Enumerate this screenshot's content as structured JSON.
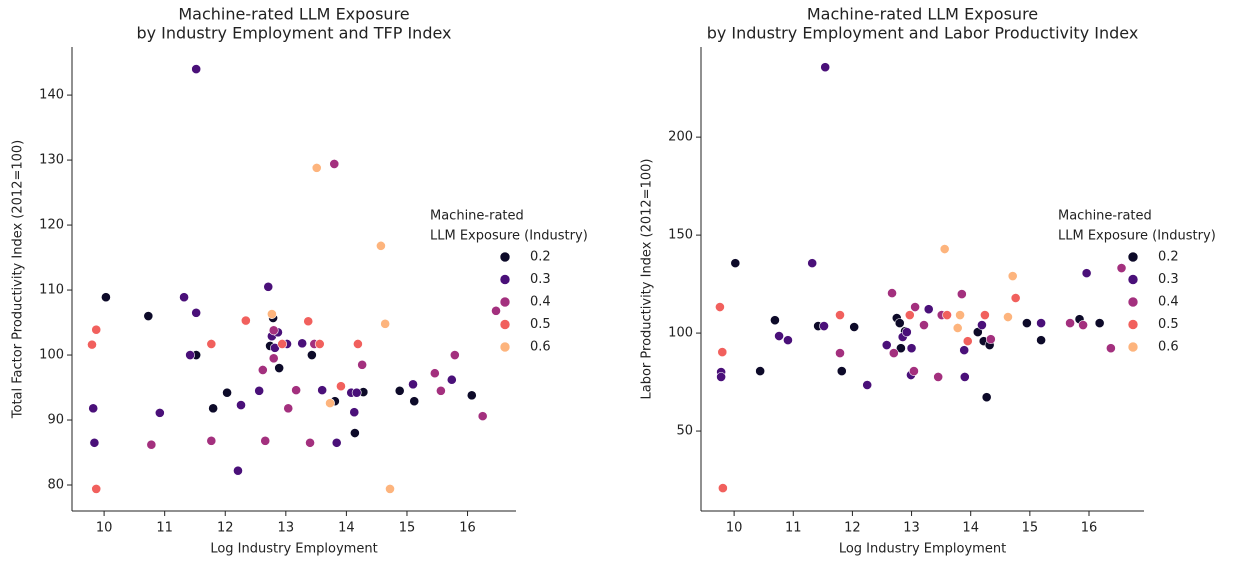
{
  "chart_data": [
    {
      "type": "scatter",
      "title": [
        "Machine-rated LLM Exposure",
        "by Industry Employment and TFP Index"
      ],
      "x_label": "Log Industry Employment",
      "y_label": "Total Factor Productivity Index (2012=100)",
      "xlim": [
        9.47,
        16.8
      ],
      "ylim": [
        76,
        147.4
      ],
      "xticks": [
        10,
        11,
        12,
        13,
        14,
        15,
        16
      ],
      "yticks": [
        80,
        90,
        100,
        110,
        120,
        130,
        140
      ],
      "legend_title": [
        "Machine-rated",
        "LLM Exposure (Industry)"
      ],
      "legend": "center right",
      "series": [
        {
          "name": "0.2",
          "color": "#0d0a29",
          "x": [
            10.03,
            10.73,
            11.52,
            11.8,
            12.03,
            12.74,
            12.79,
            12.89,
            13.43,
            13.81,
            14.14,
            14.28,
            14.88,
            15.12,
            16.07
          ],
          "values": [
            108.9,
            106,
            100,
            91.8,
            94.2,
            101.4,
            105.7,
            98,
            100,
            92.9,
            88,
            94.3,
            94.5,
            92.9,
            93.8
          ]
        },
        {
          "name": "0.3",
          "color": "#4a1079",
          "x": [
            9.82,
            9.84,
            10.92,
            11.32,
            11.42,
            11.52,
            11.52,
            12.26,
            12.21,
            12.56,
            12.71,
            12.77,
            12.82,
            12.87,
            13.02,
            13.27,
            13.6,
            13.84,
            14.08,
            14.13,
            14.17,
            15.1,
            15.74
          ],
          "values": [
            91.8,
            86.5,
            91.1,
            108.9,
            100,
            106.5,
            144,
            92.3,
            82.2,
            94.5,
            110.5,
            102.9,
            101.1,
            103.5,
            101.7,
            101.8,
            94.6,
            86.5,
            94.2,
            91.2,
            94.2,
            95.5,
            96.2
          ]
        },
        {
          "name": "0.4",
          "color": "#a3307e",
          "x": [
            10.78,
            11.77,
            12.62,
            12.66,
            12.8,
            12.8,
            13.04,
            13.17,
            13.4,
            13.47,
            13.8,
            14.26,
            15.46,
            15.56,
            15.79,
            16.25,
            16.47
          ],
          "values": [
            86.2,
            86.8,
            97.7,
            86.8,
            103.8,
            99.5,
            91.8,
            94.6,
            86.5,
            101.7,
            129.4,
            98.5,
            97.2,
            94.5,
            100,
            90.6,
            106.8
          ]
        },
        {
          "name": "0.5",
          "color": "#f1605d",
          "x": [
            9.8,
            9.87,
            9.87,
            11.77,
            12.34,
            12.94,
            13.37,
            13.56,
            13.91,
            14.19
          ],
          "values": [
            101.6,
            103.9,
            79.4,
            101.7,
            105.3,
            101.7,
            105.2,
            101.7,
            95.2,
            101.7
          ]
        },
        {
          "name": "0.6",
          "color": "#fdb47d",
          "x": [
            12.77,
            13.51,
            13.73,
            14.57,
            14.64,
            14.72
          ],
          "values": [
            106.3,
            128.8,
            92.6,
            116.8,
            104.8,
            79.4
          ]
        }
      ]
    },
    {
      "type": "scatter",
      "title": [
        "Machine-rated LLM Exposure",
        "by Industry Employment and Labor Productivity Index"
      ],
      "x_label": "Log Industry Employment",
      "y_label": "Labor Productivity Index (2012=100)",
      "xlim": [
        9.44,
        16.93
      ],
      "ylim": [
        9.2,
        246
      ],
      "xticks": [
        10,
        11,
        12,
        13,
        14,
        15,
        16
      ],
      "yticks": [
        50,
        100,
        150,
        200
      ],
      "legend_title": [
        "Machine-rated",
        "LLM Exposure (Industry)"
      ],
      "legend": "center right",
      "series": [
        {
          "name": "0.2",
          "color": "#0d0a29",
          "x": [
            10.02,
            10.44,
            10.69,
            11.42,
            11.82,
            12.03,
            12.75,
            12.8,
            12.82,
            12.89,
            14.12,
            14.22,
            14.27,
            14.32,
            14.95,
            15.19,
            15.84,
            16.18
          ],
          "values": [
            135.7,
            80.6,
            106.6,
            103.6,
            80.6,
            103.1,
            107.7,
            105.1,
            92.3,
            101,
            100.5,
            95.9,
            67.3,
            93.9,
            105.1,
            96.4,
            107.1,
            105.1
          ]
        },
        {
          "name": "0.3",
          "color": "#4a1079",
          "x": [
            9.78,
            9.78,
            10.76,
            10.91,
            11.32,
            11.52,
            11.54,
            12.25,
            12.58,
            12.85,
            12.92,
            13.0,
            12.99,
            13.29,
            13.89,
            13.9,
            14.19,
            15.19,
            15.96
          ],
          "values": [
            80.1,
            77.6,
            98.5,
            96.4,
            135.7,
            103.6,
            235.7,
            73.5,
            93.9,
            98,
            100.5,
            92.3,
            78.6,
            112.2,
            91.3,
            77.6,
            104.1,
            105.1,
            130.6
          ]
        },
        {
          "name": "0.4",
          "color": "#a3307e",
          "x": [
            11.79,
            12.67,
            12.7,
            13.04,
            13.06,
            13.21,
            13.45,
            13.51,
            13.85,
            14.34,
            15.68,
            15.9,
            16.37,
            16.55
          ],
          "values": [
            89.8,
            120.4,
            89.8,
            80.6,
            113.3,
            104.1,
            77.6,
            109.2,
            119.9,
            96.9,
            105.1,
            104.1,
            92.3,
            133.2
          ]
        },
        {
          "name": "0.5",
          "color": "#f1605d",
          "x": [
            9.76,
            9.8,
            9.81,
            11.79,
            12.97,
            13.6,
            13.95,
            14.24,
            14.76
          ],
          "values": [
            113.3,
            90.3,
            20.9,
            109.2,
            109.2,
            109.2,
            95.9,
            109.2,
            117.9
          ]
        },
        {
          "name": "0.6",
          "color": "#fdb47d",
          "x": [
            13.56,
            13.78,
            13.82,
            14.63,
            14.71
          ],
          "values": [
            142.9,
            102.6,
            109.2,
            108.2,
            129.1
          ]
        }
      ]
    }
  ]
}
